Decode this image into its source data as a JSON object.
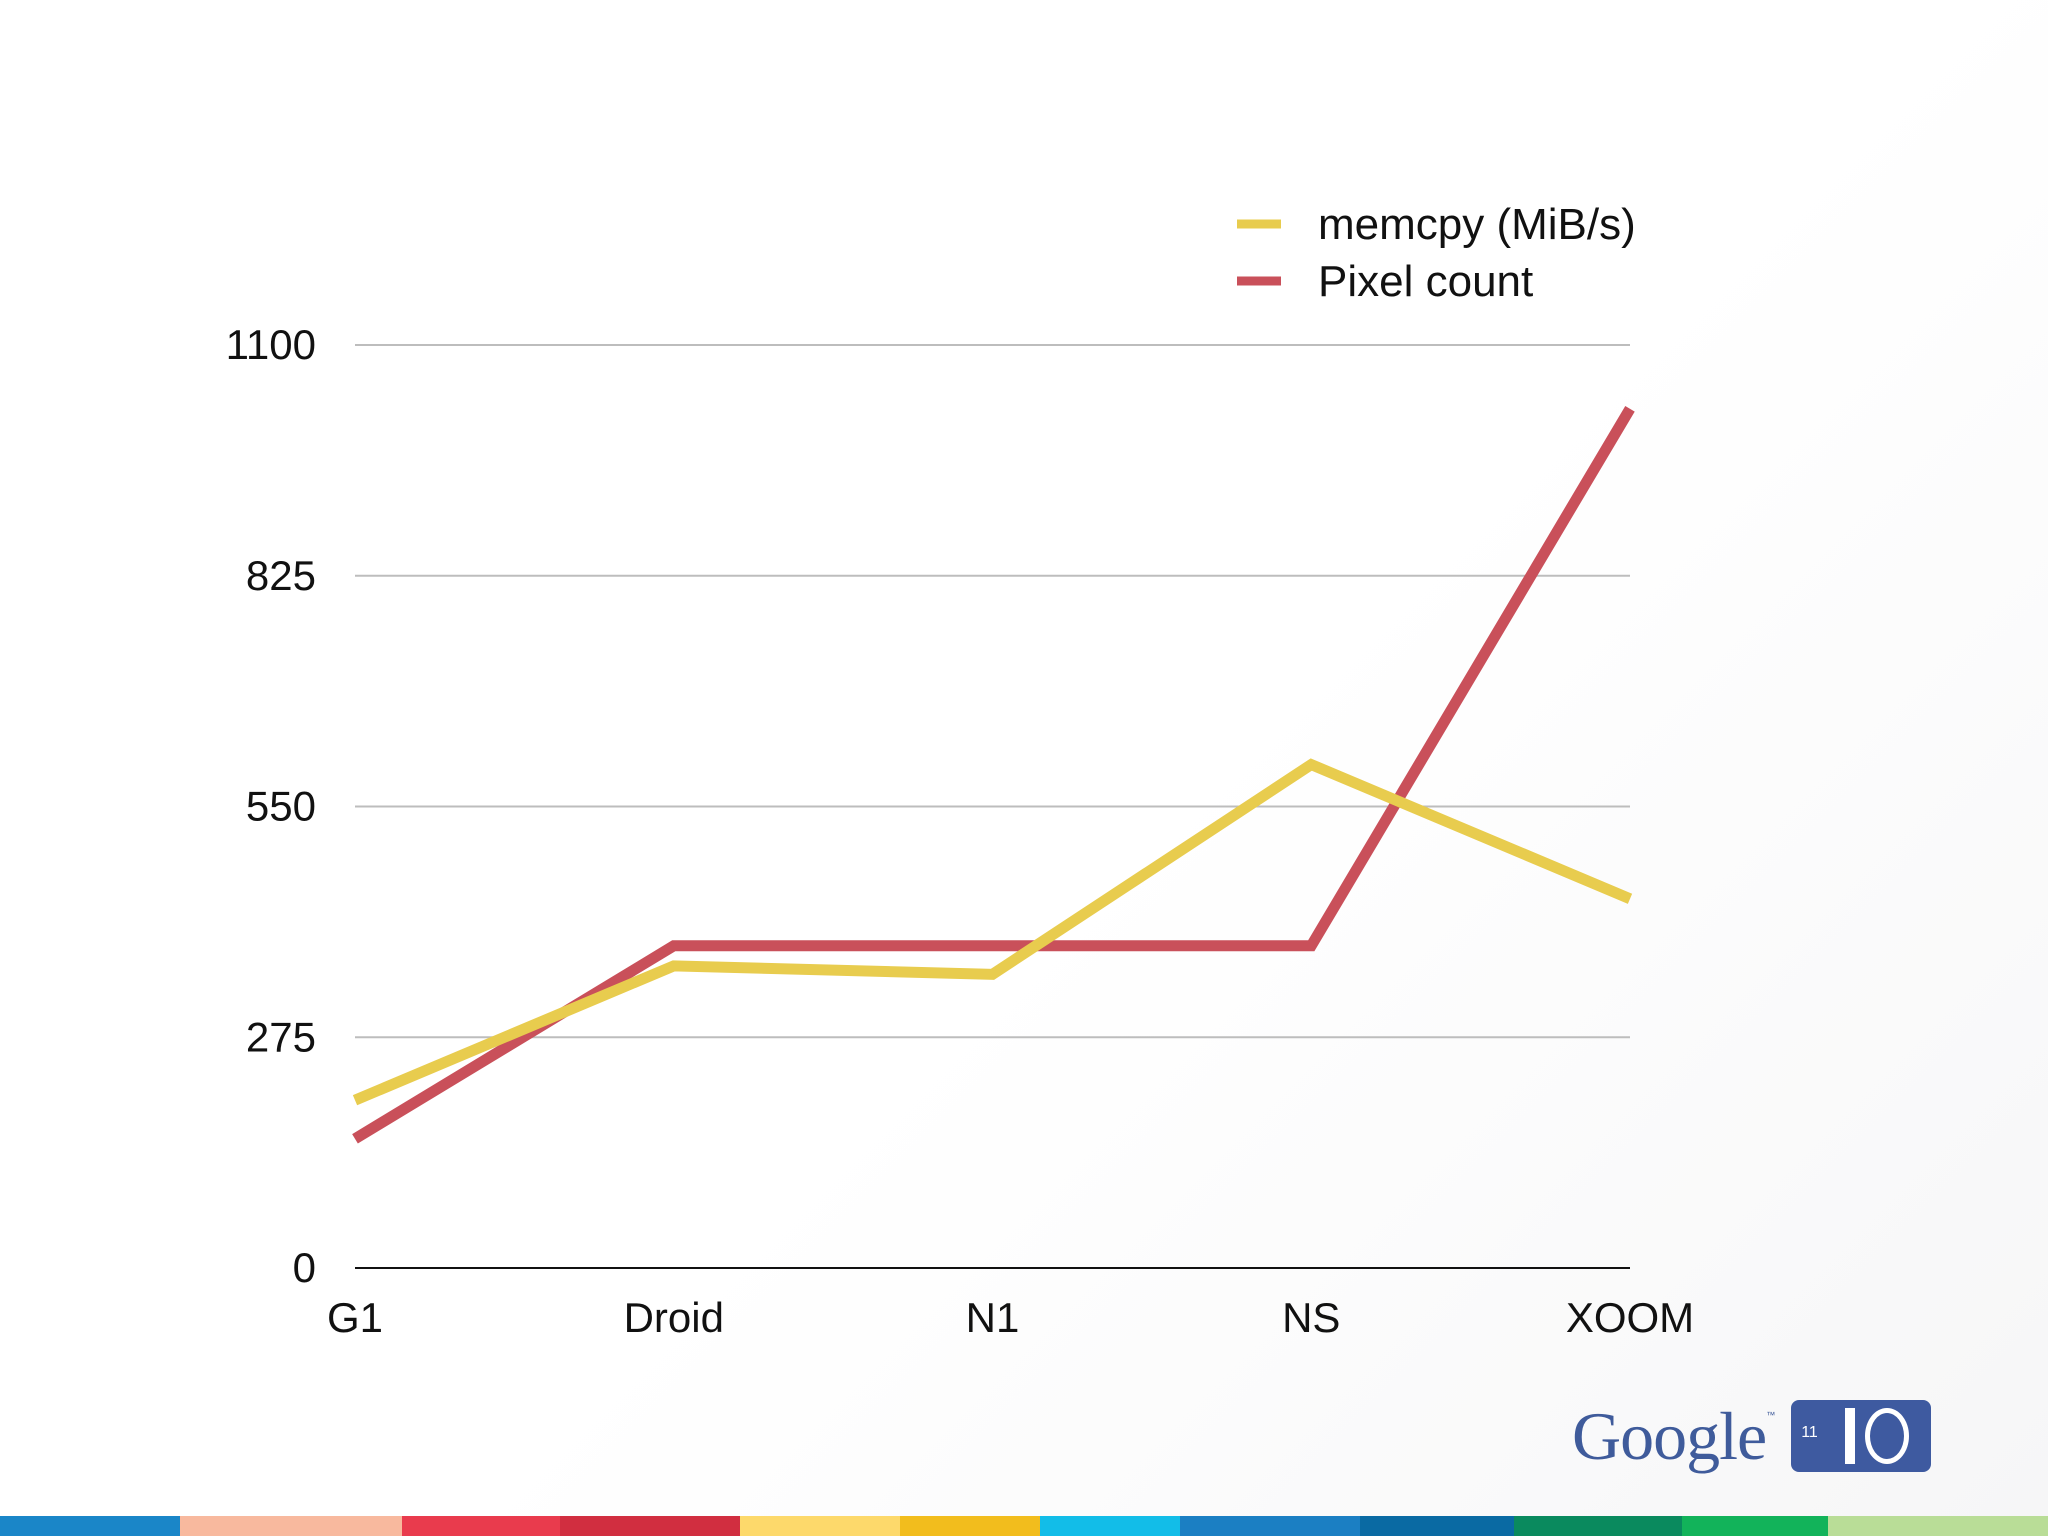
{
  "chart_data": {
    "type": "line",
    "title": "",
    "xlabel": "",
    "ylabel": "",
    "categories": [
      "G1",
      "Droid",
      "N1",
      "NS",
      "XOOM"
    ],
    "ylim": [
      0,
      1100
    ],
    "yticks": [
      "0",
      "275",
      "550",
      "825",
      "1100"
    ],
    "ytick_values": [
      0,
      275,
      550,
      825,
      1100
    ],
    "grid": true,
    "legend_position": "top-right",
    "series": [
      {
        "name": "memcpy (MiB/s)",
        "color": "#e8cc4e",
        "values": [
          200,
          360,
          350,
          600,
          440
        ]
      },
      {
        "name": "Pixel count",
        "color": "#c9505a",
        "values": [
          154,
          384,
          384,
          384,
          1024
        ]
      }
    ]
  },
  "logo": {
    "word": "Google",
    "tm": "™",
    "year": "11"
  },
  "footer_colors": [
    "#1a86c8",
    "#f8b99e",
    "#e93b4d",
    "#d12e40",
    "#fdd96b",
    "#f2bd1d",
    "#12bde8",
    "#1b7fc3",
    "#0a6aa3",
    "#0a8a5e",
    "#12b35a",
    "#b9dd97"
  ]
}
